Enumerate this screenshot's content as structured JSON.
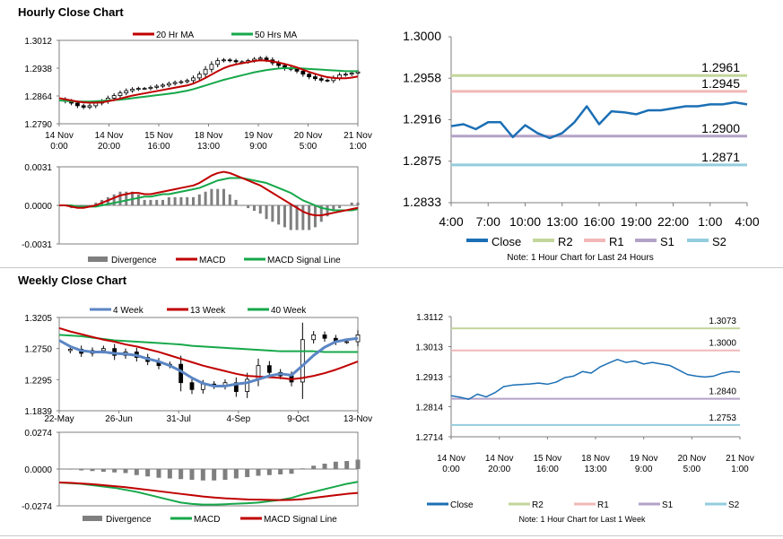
{
  "sections": {
    "hourly_title": "Hourly Close Chart",
    "weekly_title": "Weekly Close Chart"
  },
  "colors": {
    "ma_red": "#c00000",
    "ma_green": "#16a84a",
    "close_blue": "#1b6fb5",
    "weekly_4w": "#5b86c4",
    "r2": "#c3d69b",
    "r1": "#f2b8b8",
    "s1": "#b3a2c7",
    "s2": "#93cddd",
    "bars": "#7f7f7f",
    "candle": "#000000"
  },
  "chart_data": [
    {
      "id": "hourly_price",
      "type": "candlestick",
      "ylim": [
        1.279,
        1.3012
      ],
      "yticks": [
        "1.3012",
        "1.2938",
        "1.2864",
        "1.2790"
      ],
      "xticks": [
        {
          "line1": "14 Nov",
          "line2": "0:00"
        },
        {
          "line1": "14 Nov",
          "line2": "20:00"
        },
        {
          "line1": "15 Nov",
          "line2": "16:00"
        },
        {
          "line1": "18 Nov",
          "line2": "13:00"
        },
        {
          "line1": "19 Nov",
          "line2": "9:00"
        },
        {
          "line1": "20 Nov",
          "line2": "5:00"
        },
        {
          "line1": "21 Nov",
          "line2": "1:00"
        }
      ],
      "legend": [
        "20 Hr MA",
        "50 Hrs MA"
      ],
      "close": [
        1.2855,
        1.285,
        1.2845,
        1.2838,
        1.2834,
        1.2838,
        1.2845,
        1.285,
        1.2858,
        1.2865,
        1.2872,
        1.2878,
        1.2882,
        1.2884,
        1.2884,
        1.2887,
        1.289,
        1.2893,
        1.2897,
        1.29,
        1.2902,
        1.2905,
        1.2912,
        1.2922,
        1.2935,
        1.2948,
        1.2958,
        1.296,
        1.2958,
        1.2955,
        1.2955,
        1.2958,
        1.2962,
        1.2965,
        1.296,
        1.2952,
        1.2945,
        1.2938,
        1.2935,
        1.293,
        1.2922,
        1.2915,
        1.291,
        1.2906,
        1.2905,
        1.2912,
        1.292,
        1.2922,
        1.2925,
        1.2928
      ],
      "ma20": [
        1.2858,
        1.2855,
        1.2852,
        1.2849,
        1.2847,
        1.2846,
        1.2846,
        1.2847,
        1.285,
        1.2853,
        1.2857,
        1.2861,
        1.2865,
        1.2868,
        1.2871,
        1.2874,
        1.2877,
        1.288,
        1.2883,
        1.2886,
        1.2889,
        1.2892,
        1.2897,
        1.2904,
        1.2912,
        1.2921,
        1.293,
        1.2938,
        1.2944,
        1.2948,
        1.2951,
        1.2954,
        1.2957,
        1.2959,
        1.2958,
        1.2956,
        1.2953,
        1.2949,
        1.2945,
        1.294,
        1.2934,
        1.2928,
        1.2923,
        1.2918,
        1.2914,
        1.2912,
        1.2911,
        1.2911,
        1.2913,
        1.2916
      ],
      "ma50": [
        1.2852,
        1.2851,
        1.285,
        1.2849,
        1.2849,
        1.2849,
        1.285,
        1.2851,
        1.2852,
        1.2853,
        1.2854,
        1.2856,
        1.2858,
        1.286,
        1.2862,
        1.2864,
        1.2866,
        1.2868,
        1.287,
        1.2872,
        1.2875,
        1.2878,
        1.2882,
        1.2887,
        1.2892,
        1.2897,
        1.2902,
        1.2907,
        1.2911,
        1.2915,
        1.2919,
        1.2923,
        1.2927,
        1.293,
        1.2933,
        1.2935,
        1.2937,
        1.2938,
        1.2938,
        1.2938,
        1.2937,
        1.2936,
        1.2935,
        1.2934,
        1.2933,
        1.2932,
        1.2931,
        1.293,
        1.293,
        1.293
      ]
    },
    {
      "id": "hourly_macd",
      "type": "bar+line",
      "ylim": [
        -0.0031,
        0.0031
      ],
      "yticks": [
        "0.0031",
        "0.0000",
        "-0.0031"
      ],
      "legend": [
        "Divergence",
        "MACD",
        "MACD Signal Line"
      ],
      "macd": [
        0.0,
        0.0,
        -0.0001,
        -0.0002,
        -0.0002,
        -0.0001,
        0.0,
        0.0002,
        0.0004,
        0.0006,
        0.0008,
        0.0009,
        0.001,
        0.001,
        0.0009,
        0.0009,
        0.001,
        0.0011,
        0.0012,
        0.0013,
        0.0014,
        0.0015,
        0.0016,
        0.0018,
        0.0021,
        0.0024,
        0.0026,
        0.0027,
        0.0026,
        0.0024,
        0.0022,
        0.002,
        0.0018,
        0.0016,
        0.0013,
        0.001,
        0.0007,
        0.0004,
        0.0001,
        -0.0002,
        -0.0005,
        -0.0007,
        -0.0008,
        -0.0008,
        -0.0007,
        -0.0006,
        -0.0005,
        -0.0004,
        -0.0003,
        -0.0002
      ],
      "signal": [
        0.0,
        0.0,
        0.0,
        -0.0001,
        -0.0001,
        -0.0001,
        -0.0001,
        0.0,
        0.0001,
        0.0002,
        0.0003,
        0.0004,
        0.0005,
        0.0006,
        0.0007,
        0.0007,
        0.0008,
        0.0009,
        0.0009,
        0.001,
        0.0011,
        0.0012,
        0.0013,
        0.0014,
        0.0016,
        0.0018,
        0.002,
        0.0021,
        0.0022,
        0.0022,
        0.0022,
        0.0021,
        0.002,
        0.0019,
        0.0018,
        0.0016,
        0.0014,
        0.0012,
        0.001,
        0.0007,
        0.0004,
        0.0002,
        0.0,
        -0.0002,
        -0.0003,
        -0.0004,
        -0.0004,
        -0.0004,
        -0.0004,
        -0.0003
      ]
    },
    {
      "id": "hourly_pivot",
      "type": "line",
      "ylim": [
        1.2833,
        1.3
      ],
      "yticks": [
        "1.3000",
        "1.2958",
        "1.2916",
        "1.2875",
        "1.2833"
      ],
      "xticks": [
        "4:00",
        "7:00",
        "10:00",
        "13:00",
        "16:00",
        "19:00",
        "22:00",
        "1:00",
        "4:00"
      ],
      "legend": [
        "Close",
        "R2",
        "R1",
        "S1",
        "S2"
      ],
      "levels": [
        {
          "name": "R2",
          "value": 1.2961,
          "label": "1.2961"
        },
        {
          "name": "R1",
          "value": 1.2945,
          "label": "1.2945"
        },
        {
          "name": "S1",
          "value": 1.29,
          "label": "1.2900"
        },
        {
          "name": "S2",
          "value": 1.2871,
          "label": "1.2871"
        }
      ],
      "close": [
        1.291,
        1.2912,
        1.2907,
        1.2914,
        1.2914,
        1.2899,
        1.2911,
        1.2903,
        1.2898,
        1.2903,
        1.2914,
        1.293,
        1.2912,
        1.2925,
        1.2924,
        1.2922,
        1.2926,
        1.2926,
        1.2928,
        1.293,
        1.293,
        1.2932,
        1.2932,
        1.2934,
        1.2932
      ],
      "note": "Note: 1 Hour Chart for Last 24 Hours"
    },
    {
      "id": "weekly_price",
      "type": "candlestick",
      "ylim": [
        1.1839,
        1.3205
      ],
      "yticks": [
        "1.3205",
        "1.2750",
        "1.2295",
        "1.1839"
      ],
      "xticks": [
        "22-May",
        "26-Jun",
        "31-Jul",
        "4-Sep",
        "9-Oct",
        "13-Nov"
      ],
      "legend": [
        "4 Week",
        "13 Week",
        "40 Week"
      ],
      "close": [
        1.272,
        1.274,
        1.268,
        1.272,
        1.275,
        1.265,
        1.27,
        1.262,
        1.256,
        1.25,
        1.252,
        1.225,
        1.215,
        1.223,
        1.22,
        1.225,
        1.212,
        1.23,
        1.25,
        1.24,
        1.235,
        1.226,
        1.288,
        1.295,
        1.29,
        1.285,
        1.285,
        1.295
      ],
      "w4": [
        1.287,
        1.278,
        1.272,
        1.27,
        1.27,
        1.268,
        1.267,
        1.265,
        1.26,
        1.256,
        1.25,
        1.242,
        1.232,
        1.224,
        1.22,
        1.22,
        1.223,
        1.225,
        1.23,
        1.235,
        1.238,
        1.236,
        1.25,
        1.265,
        1.277,
        1.285,
        1.288,
        1.29
      ],
      "w13": [
        1.305,
        1.3,
        1.296,
        1.292,
        1.288,
        1.285,
        1.281,
        1.278,
        1.274,
        1.27,
        1.265,
        1.26,
        1.255,
        1.25,
        1.246,
        1.242,
        1.238,
        1.235,
        1.234,
        1.233,
        1.232,
        1.23,
        1.232,
        1.235,
        1.239,
        1.244,
        1.25,
        1.256
      ],
      "w40": [
        1.295,
        1.294,
        1.293,
        1.291,
        1.289,
        1.287,
        1.286,
        1.285,
        1.284,
        1.283,
        1.282,
        1.281,
        1.279,
        1.278,
        1.277,
        1.276,
        1.275,
        1.274,
        1.273,
        1.272,
        1.271,
        1.271,
        1.271,
        1.271,
        1.27,
        1.27,
        1.27,
        1.27
      ]
    },
    {
      "id": "weekly_macd",
      "type": "bar+line",
      "ylim": [
        -0.0274,
        0.0274
      ],
      "yticks": [
        "0.0274",
        "0.0000",
        "-0.0274"
      ],
      "legend": [
        "Divergence",
        "MACD",
        "MACD Signal Line"
      ],
      "divergence": [
        0.0002,
        0.0,
        -0.001,
        -0.0015,
        -0.002,
        -0.0025,
        -0.003,
        -0.0045,
        -0.0055,
        -0.0065,
        -0.007,
        -0.0075,
        -0.008,
        -0.0085,
        -0.0085,
        -0.008,
        -0.007,
        -0.006,
        -0.005,
        -0.0045,
        -0.004,
        -0.0035,
        0.0005,
        0.0025,
        0.004,
        0.0055,
        0.006,
        0.007
      ],
      "macd": [
        -0.01,
        -0.0105,
        -0.011,
        -0.012,
        -0.013,
        -0.014,
        -0.0155,
        -0.017,
        -0.019,
        -0.021,
        -0.023,
        -0.025,
        -0.026,
        -0.0265,
        -0.0265,
        -0.0262,
        -0.0258,
        -0.0255,
        -0.025,
        -0.024,
        -0.023,
        -0.0215,
        -0.019,
        -0.017,
        -0.015,
        -0.013,
        -0.011,
        -0.0095
      ],
      "signal": [
        -0.01,
        -0.0103,
        -0.0108,
        -0.0113,
        -0.012,
        -0.0128,
        -0.0135,
        -0.0145,
        -0.0155,
        -0.0165,
        -0.0175,
        -0.0185,
        -0.0195,
        -0.0205,
        -0.0212,
        -0.0218,
        -0.0222,
        -0.0226,
        -0.0228,
        -0.023,
        -0.0231,
        -0.023,
        -0.0225,
        -0.0215,
        -0.0205,
        -0.0195,
        -0.0185,
        -0.0178
      ]
    },
    {
      "id": "weekly_pivot",
      "type": "line",
      "ylim": [
        1.2714,
        1.3112
      ],
      "yticks": [
        "1.3112",
        "1.3013",
        "1.2913",
        "1.2814",
        "1.2714"
      ],
      "xticks": [
        {
          "line1": "14 Nov",
          "line2": "0:00"
        },
        {
          "line1": "14 Nov",
          "line2": "20:00"
        },
        {
          "line1": "15 Nov",
          "line2": "16:00"
        },
        {
          "line1": "18 Nov",
          "line2": "13:00"
        },
        {
          "line1": "19 Nov",
          "line2": "9:00"
        },
        {
          "line1": "20 Nov",
          "line2": "5:00"
        },
        {
          "line1": "21 Nov",
          "line2": "1:00"
        }
      ],
      "legend": [
        "Close",
        "R2",
        "R1",
        "S1",
        "S2"
      ],
      "levels": [
        {
          "name": "R2",
          "value": 1.3073,
          "label": "1.3073"
        },
        {
          "name": "R1",
          "value": 1.3,
          "label": "1.3000"
        },
        {
          "name": "S1",
          "value": 1.284,
          "label": "1.2840"
        },
        {
          "name": "S2",
          "value": 1.2753,
          "label": "1.2753"
        }
      ],
      "close": [
        1.285,
        1.2845,
        1.2838,
        1.2855,
        1.2846,
        1.286,
        1.288,
        1.2885,
        1.2887,
        1.2889,
        1.2892,
        1.2888,
        1.2895,
        1.291,
        1.2915,
        1.293,
        1.2925,
        1.2945,
        1.2958,
        1.297,
        1.296,
        1.2965,
        1.2955,
        1.296,
        1.2955,
        1.295,
        1.2935,
        1.292,
        1.2915,
        1.2912,
        1.2915,
        1.2925,
        1.293,
        1.2928
      ],
      "note": "Note: 1 Hour Chart for Last 1 Week"
    }
  ]
}
